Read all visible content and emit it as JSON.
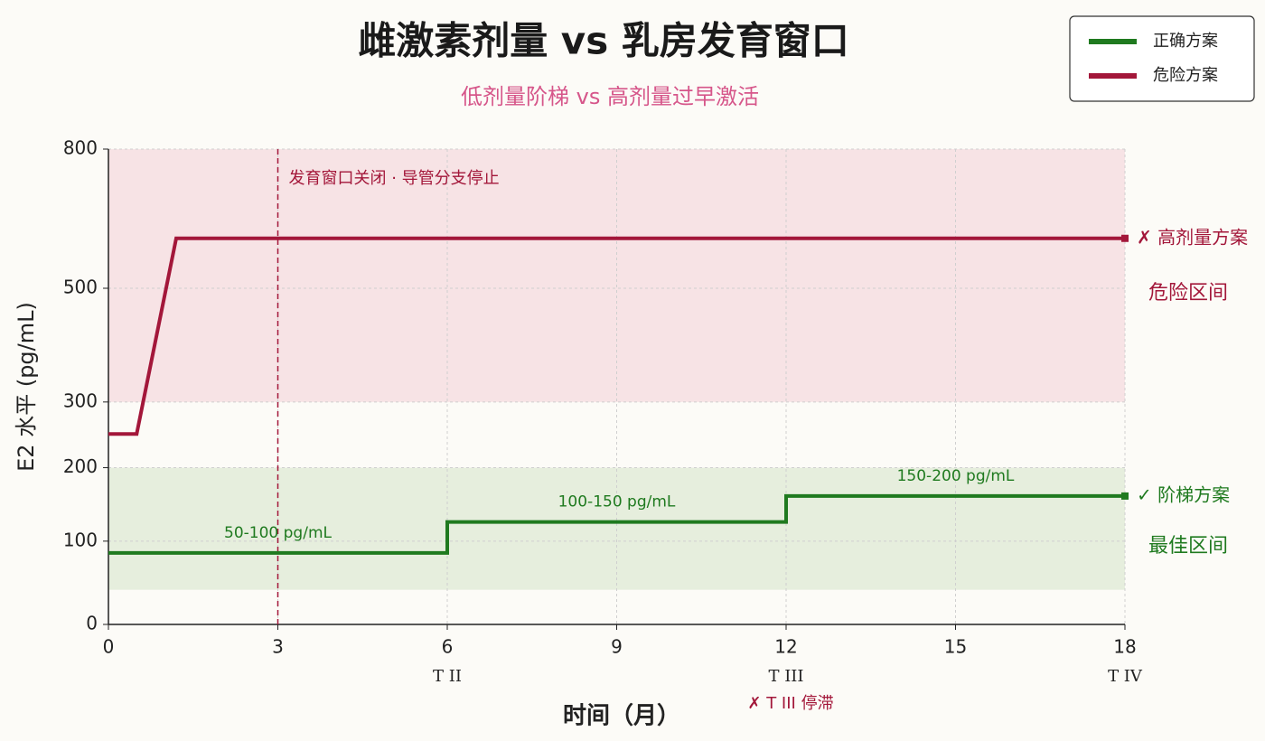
{
  "chart_data": {
    "type": "line",
    "title": "雌激素剂量 vs 乳房发育窗口",
    "subtitle": "低剂量阶梯 vs 高剂量过早激活",
    "xlabel": "时间（月）",
    "ylabel": "E2 水平 (pg/mL)",
    "xlim": [
      0,
      18
    ],
    "xticks": [
      0,
      3,
      6,
      9,
      12,
      15,
      18
    ],
    "ylim": [
      0,
      800
    ],
    "yticks": [
      0,
      100,
      200,
      300,
      500,
      800
    ],
    "grid": true,
    "legend": "upper right",
    "series": [
      {
        "name": "正确方案",
        "color": "#1f7a1f",
        "x": [
          0,
          6,
          6,
          12,
          12,
          18
        ],
        "values": [
          85,
          85,
          125,
          125,
          160,
          160
        ],
        "end_label": "✓ 阶梯方案",
        "segment_labels": [
          "50-100 pg/mL",
          "100-150 pg/mL",
          "150-200 pg/mL"
        ]
      },
      {
        "name": "危险方案",
        "color": "#a3173a",
        "x": [
          0,
          0.5,
          1.2,
          18
        ],
        "values": [
          250,
          250,
          600,
          600
        ],
        "end_label": "✗ 高剂量方案"
      }
    ],
    "bands": [
      {
        "from": 300,
        "to": 800,
        "color": "#f7e3e5",
        "text_color": "#a3173a",
        "label": "危险区间"
      },
      {
        "from": 40,
        "to": 200,
        "color": "#e6eedd",
        "text_color": "#1f7a1f",
        "label": "最佳区间"
      }
    ],
    "vline": {
      "x": 3,
      "color": "#a3173a",
      "label": "发育窗口关闭 · 导管分支停止"
    },
    "stage_labels": [
      {
        "x": 6,
        "label": "T II"
      },
      {
        "x": 12,
        "label": "T III",
        "note": "✗ T III 停滞"
      },
      {
        "x": 18,
        "label": "T IV"
      }
    ]
  }
}
